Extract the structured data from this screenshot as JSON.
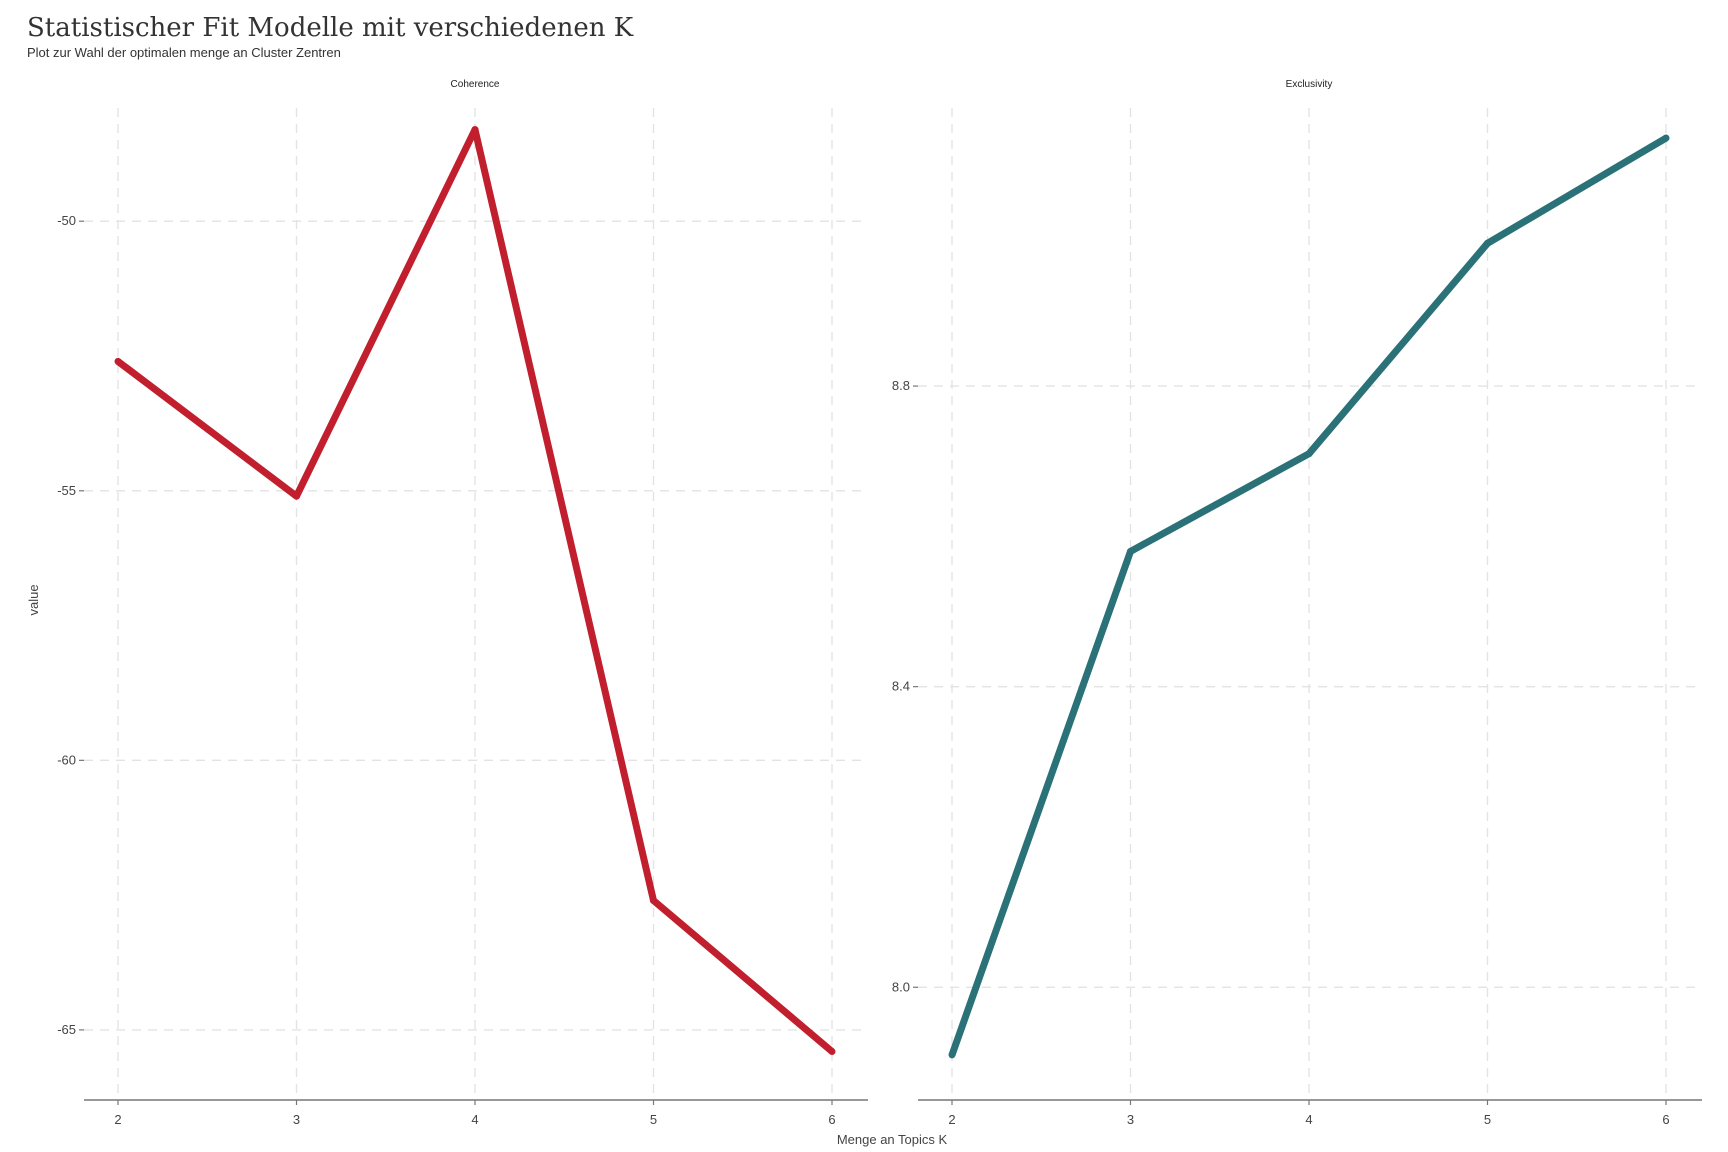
{
  "title": "Statistischer Fit Modelle mit verschiedenen K",
  "subtitle": "Plot zur Wahl der optimalen menge an Cluster Zentren",
  "chart_data": {
    "type": "line",
    "xlabel": "Menge an Topics K",
    "ylabel": "value",
    "x": [
      2,
      3,
      4,
      5,
      6
    ],
    "grid": true,
    "facets": [
      {
        "name": "Coherence",
        "color": "#c21f2e",
        "values": [
          -52.6,
          -55.1,
          -48.3,
          -62.6,
          -65.4
        ],
        "yticks": [
          -50,
          -55,
          -60,
          -65
        ],
        "ytick_labels": [
          "-50",
          "-55",
          "-60",
          "-65"
        ],
        "ylim": [
          -66.3,
          -47.9
        ]
      },
      {
        "name": "Exclusivity",
        "color": "#2a7178",
        "values": [
          7.91,
          8.58,
          8.71,
          8.99,
          9.13
        ],
        "yticks": [
          8.0,
          8.4,
          8.8
        ],
        "ytick_labels": [
          "8.0",
          "8.4",
          "8.8"
        ],
        "ylim": [
          7.85,
          9.17
        ]
      }
    ]
  }
}
